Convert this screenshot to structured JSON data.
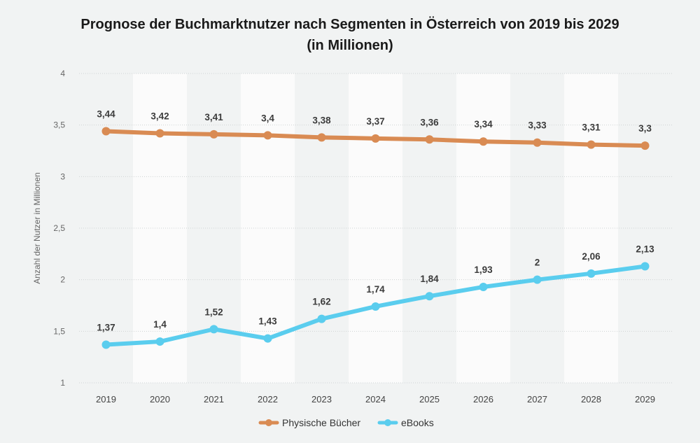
{
  "chart_data": {
    "type": "line",
    "title": "Prognose der Buchmarktnutzer nach Segmenten in Österreich von 2019 bis 2029",
    "subtitle": "(in Millionen)",
    "ylabel": "Anzahl der Nutzer in Millionen",
    "xlabel": "",
    "categories": [
      "2019",
      "2020",
      "2021",
      "2022",
      "2023",
      "2024",
      "2025",
      "2026",
      "2027",
      "2028",
      "2029"
    ],
    "ylim": [
      1,
      4
    ],
    "yticks": [
      1,
      1.5,
      2,
      2.5,
      3,
      3.5,
      4
    ],
    "ytick_labels": [
      "1",
      "1,5",
      "2",
      "2,5",
      "3",
      "3,5",
      "4"
    ],
    "grid": true,
    "legend_position": "bottom",
    "series": [
      {
        "name": "Physische Bücher",
        "color": "#d98b53",
        "values": [
          3.44,
          3.42,
          3.41,
          3.4,
          3.38,
          3.37,
          3.36,
          3.34,
          3.33,
          3.31,
          3.3
        ],
        "labels": [
          "3,44",
          "3,42",
          "3,41",
          "3,4",
          "3,38",
          "3,37",
          "3,36",
          "3,34",
          "3,33",
          "3,31",
          "3,3"
        ]
      },
      {
        "name": "eBooks",
        "color": "#5acdee",
        "values": [
          1.37,
          1.4,
          1.52,
          1.43,
          1.62,
          1.74,
          1.84,
          1.93,
          2,
          2.06,
          2.13
        ],
        "labels": [
          "1,37",
          "1,4",
          "1,52",
          "1,43",
          "1,62",
          "1,74",
          "1,84",
          "1,93",
          "2",
          "2,06",
          "2,13"
        ]
      }
    ]
  }
}
